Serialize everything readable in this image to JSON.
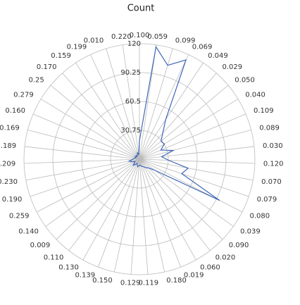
{
  "chart_data": {
    "type": "radar",
    "title": "Count",
    "categories": [
      "0.100",
      "0.059",
      "0.099",
      "0.069",
      "0.049",
      "0.029",
      "0.050",
      "0.040",
      "0.109",
      "0.089",
      "0.030",
      "0.120",
      "0.070",
      "0.079",
      "0.080",
      "0.039",
      "0.090",
      "0.020",
      "0.060",
      "0.019",
      "0.180",
      "0.119",
      "0.129",
      "0.150",
      "0.139",
      "0.130",
      "0.110",
      "0.009",
      "0.140",
      "0.259",
      "0.190",
      "0.230",
      "0.209",
      "0.189",
      "0.169",
      "0.160",
      "0.279",
      "0.25",
      "0.170",
      "0.159",
      "0.199",
      "0.010",
      "0.220"
    ],
    "series": [
      {
        "name": "Count",
        "color": "#3f66b8",
        "values": [
          20,
          118,
          102,
          114,
          50,
          37,
          30,
          31,
          25,
          37,
          24,
          31,
          52,
          47,
          94,
          21,
          14,
          12,
          10,
          9,
          8,
          7,
          8,
          9,
          7,
          6,
          8,
          10,
          7,
          6,
          9,
          12,
          8,
          7,
          6,
          5,
          6,
          5,
          6,
          5,
          6,
          8,
          6
        ]
      }
    ],
    "ylim": [
      1,
      120
    ],
    "yticks": [
      30.75,
      60.5,
      90.25,
      120
    ]
  }
}
